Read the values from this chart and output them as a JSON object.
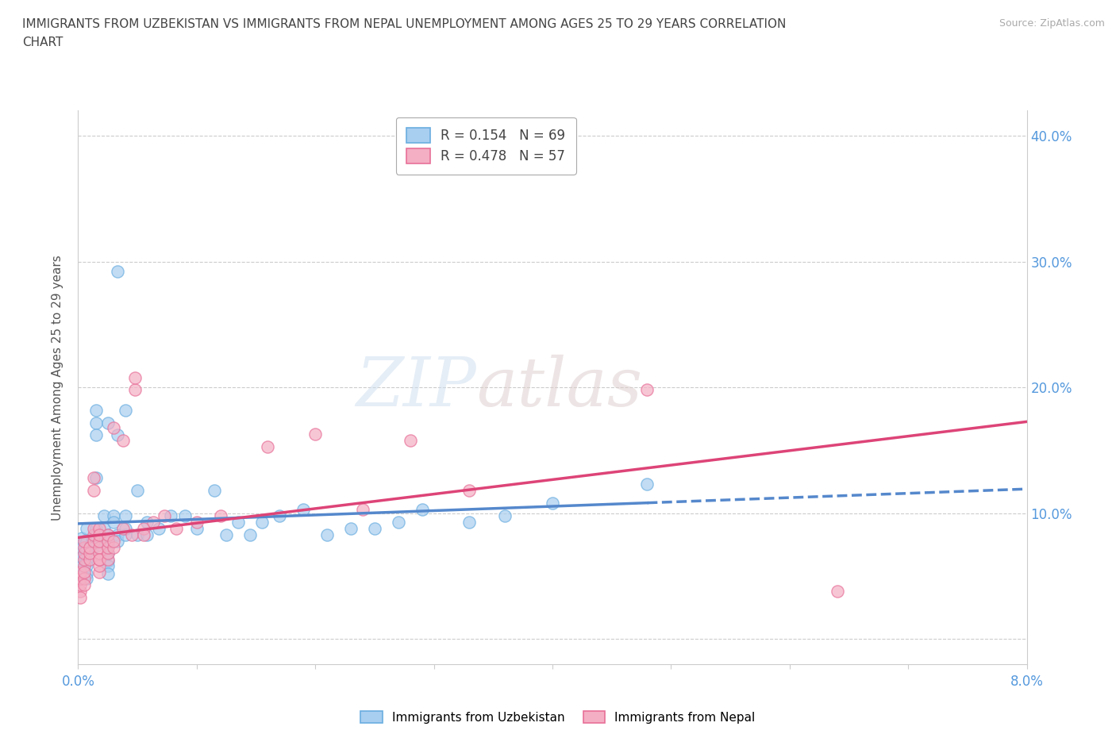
{
  "title_line1": "IMMIGRANTS FROM UZBEKISTAN VS IMMIGRANTS FROM NEPAL UNEMPLOYMENT AMONG AGES 25 TO 29 YEARS CORRELATION",
  "title_line2": "CHART",
  "source_text": "Source: ZipAtlas.com",
  "ylabel": "Unemployment Among Ages 25 to 29 years",
  "xlim": [
    0.0,
    0.08
  ],
  "ylim": [
    -0.02,
    0.42
  ],
  "xtick_positions": [
    0.0,
    0.01,
    0.02,
    0.03,
    0.04,
    0.05,
    0.06,
    0.07,
    0.08
  ],
  "xtick_labels": [
    "0.0%",
    "",
    "",
    "",
    "",
    "",
    "",
    "",
    "8.0%"
  ],
  "ytick_positions": [
    0.0,
    0.1,
    0.2,
    0.3,
    0.4
  ],
  "ytick_labels": [
    "",
    "10.0%",
    "20.0%",
    "30.0%",
    "40.0%"
  ],
  "watermark_zip": "ZIP",
  "watermark_atlas": "atlas",
  "legend_r1": "R = 0.154   N = 69",
  "legend_r2": "R = 0.478   N = 57",
  "uzbekistan_color": "#a8cef0",
  "nepal_color": "#f4afc4",
  "uzbekistan_edge_color": "#6aaee0",
  "nepal_edge_color": "#e87098",
  "uzbekistan_trendline_color": "#5588cc",
  "nepal_trendline_color": "#dd4477",
  "grid_color": "#cccccc",
  "uzbekistan_scatter": [
    [
      0.0003,
      0.075
    ],
    [
      0.0003,
      0.068
    ],
    [
      0.0003,
      0.062
    ],
    [
      0.0003,
      0.058
    ],
    [
      0.0003,
      0.072
    ],
    [
      0.0003,
      0.08
    ],
    [
      0.0003,
      0.065
    ],
    [
      0.0007,
      0.078
    ],
    [
      0.0007,
      0.068
    ],
    [
      0.0007,
      0.072
    ],
    [
      0.0007,
      0.062
    ],
    [
      0.0007,
      0.058
    ],
    [
      0.0007,
      0.052
    ],
    [
      0.0007,
      0.088
    ],
    [
      0.0007,
      0.048
    ],
    [
      0.0012,
      0.078
    ],
    [
      0.0012,
      0.072
    ],
    [
      0.0015,
      0.172
    ],
    [
      0.0015,
      0.182
    ],
    [
      0.0015,
      0.162
    ],
    [
      0.0015,
      0.128
    ],
    [
      0.0015,
      0.088
    ],
    [
      0.0015,
      0.082
    ],
    [
      0.0015,
      0.078
    ],
    [
      0.0015,
      0.074
    ],
    [
      0.0022,
      0.088
    ],
    [
      0.0022,
      0.098
    ],
    [
      0.0025,
      0.172
    ],
    [
      0.0025,
      0.083
    ],
    [
      0.0025,
      0.078
    ],
    [
      0.0025,
      0.074
    ],
    [
      0.0025,
      0.068
    ],
    [
      0.0025,
      0.062
    ],
    [
      0.0025,
      0.058
    ],
    [
      0.0025,
      0.052
    ],
    [
      0.003,
      0.098
    ],
    [
      0.003,
      0.093
    ],
    [
      0.0033,
      0.162
    ],
    [
      0.0033,
      0.292
    ],
    [
      0.0033,
      0.083
    ],
    [
      0.0033,
      0.078
    ],
    [
      0.004,
      0.083
    ],
    [
      0.004,
      0.182
    ],
    [
      0.004,
      0.098
    ],
    [
      0.004,
      0.088
    ],
    [
      0.005,
      0.118
    ],
    [
      0.005,
      0.083
    ],
    [
      0.0058,
      0.093
    ],
    [
      0.0058,
      0.083
    ],
    [
      0.0068,
      0.088
    ],
    [
      0.0078,
      0.098
    ],
    [
      0.009,
      0.098
    ],
    [
      0.01,
      0.088
    ],
    [
      0.0115,
      0.118
    ],
    [
      0.0125,
      0.083
    ],
    [
      0.0135,
      0.093
    ],
    [
      0.0145,
      0.083
    ],
    [
      0.0155,
      0.093
    ],
    [
      0.017,
      0.098
    ],
    [
      0.019,
      0.103
    ],
    [
      0.021,
      0.083
    ],
    [
      0.023,
      0.088
    ],
    [
      0.025,
      0.088
    ],
    [
      0.027,
      0.093
    ],
    [
      0.029,
      0.103
    ],
    [
      0.033,
      0.093
    ],
    [
      0.036,
      0.098
    ],
    [
      0.04,
      0.108
    ],
    [
      0.048,
      0.123
    ]
  ],
  "nepal_scatter": [
    [
      0.0002,
      0.038
    ],
    [
      0.0002,
      0.033
    ],
    [
      0.0002,
      0.043
    ],
    [
      0.0002,
      0.048
    ],
    [
      0.0002,
      0.053
    ],
    [
      0.0005,
      0.048
    ],
    [
      0.0005,
      0.058
    ],
    [
      0.0005,
      0.063
    ],
    [
      0.0005,
      0.068
    ],
    [
      0.0005,
      0.073
    ],
    [
      0.0005,
      0.053
    ],
    [
      0.0005,
      0.043
    ],
    [
      0.0005,
      0.078
    ],
    [
      0.001,
      0.063
    ],
    [
      0.001,
      0.068
    ],
    [
      0.001,
      0.073
    ],
    [
      0.0013,
      0.078
    ],
    [
      0.0013,
      0.118
    ],
    [
      0.0013,
      0.128
    ],
    [
      0.0013,
      0.083
    ],
    [
      0.0013,
      0.088
    ],
    [
      0.0018,
      0.053
    ],
    [
      0.0018,
      0.058
    ],
    [
      0.0018,
      0.063
    ],
    [
      0.0018,
      0.068
    ],
    [
      0.0018,
      0.073
    ],
    [
      0.0018,
      0.078
    ],
    [
      0.0018,
      0.088
    ],
    [
      0.0018,
      0.083
    ],
    [
      0.0018,
      0.063
    ],
    [
      0.0025,
      0.063
    ],
    [
      0.0025,
      0.068
    ],
    [
      0.0025,
      0.073
    ],
    [
      0.0025,
      0.078
    ],
    [
      0.0025,
      0.083
    ],
    [
      0.003,
      0.168
    ],
    [
      0.003,
      0.073
    ],
    [
      0.003,
      0.078
    ],
    [
      0.0038,
      0.158
    ],
    [
      0.0038,
      0.088
    ],
    [
      0.0045,
      0.083
    ],
    [
      0.0048,
      0.198
    ],
    [
      0.0048,
      0.208
    ],
    [
      0.0055,
      0.088
    ],
    [
      0.0055,
      0.083
    ],
    [
      0.0063,
      0.093
    ],
    [
      0.0073,
      0.098
    ],
    [
      0.0083,
      0.088
    ],
    [
      0.01,
      0.093
    ],
    [
      0.012,
      0.098
    ],
    [
      0.016,
      0.153
    ],
    [
      0.02,
      0.163
    ],
    [
      0.024,
      0.103
    ],
    [
      0.028,
      0.158
    ],
    [
      0.033,
      0.118
    ],
    [
      0.048,
      0.198
    ],
    [
      0.064,
      0.038
    ]
  ]
}
